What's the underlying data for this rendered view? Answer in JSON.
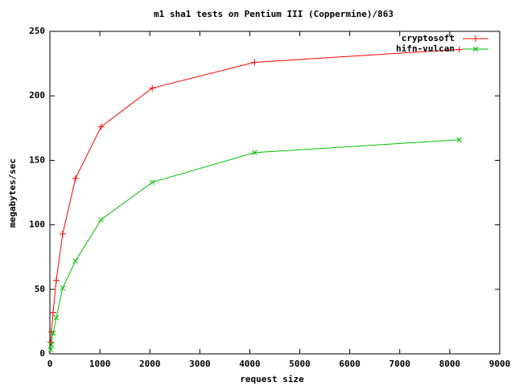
{
  "chart_data": {
    "type": "line",
    "title": "m1 sha1 tests on Pentium III (Coppermine)/863",
    "xlabel": "request size",
    "ylabel": "megabytes/sec",
    "xlim": [
      0,
      9000
    ],
    "ylim": [
      0,
      250
    ],
    "xticks": [
      0,
      1000,
      2000,
      3000,
      4000,
      5000,
      6000,
      7000,
      8000,
      9000
    ],
    "yticks": [
      0,
      50,
      100,
      150,
      200,
      250
    ],
    "grid": false,
    "legend": "top-right",
    "x": [
      16,
      32,
      64,
      128,
      256,
      512,
      1024,
      2048,
      4096,
      8192
    ],
    "series": [
      {
        "name": "cryptosoft",
        "color": "#ff0000",
        "marker": "plus",
        "values": [
          9,
          17,
          32,
          57,
          93,
          136,
          176,
          206,
          226,
          236
        ]
      },
      {
        "name": "hifn-vulcan",
        "color": "#00c000",
        "marker": "cross",
        "values": [
          3,
          7,
          16,
          28,
          51,
          72,
          104,
          133,
          156,
          166
        ]
      }
    ]
  }
}
